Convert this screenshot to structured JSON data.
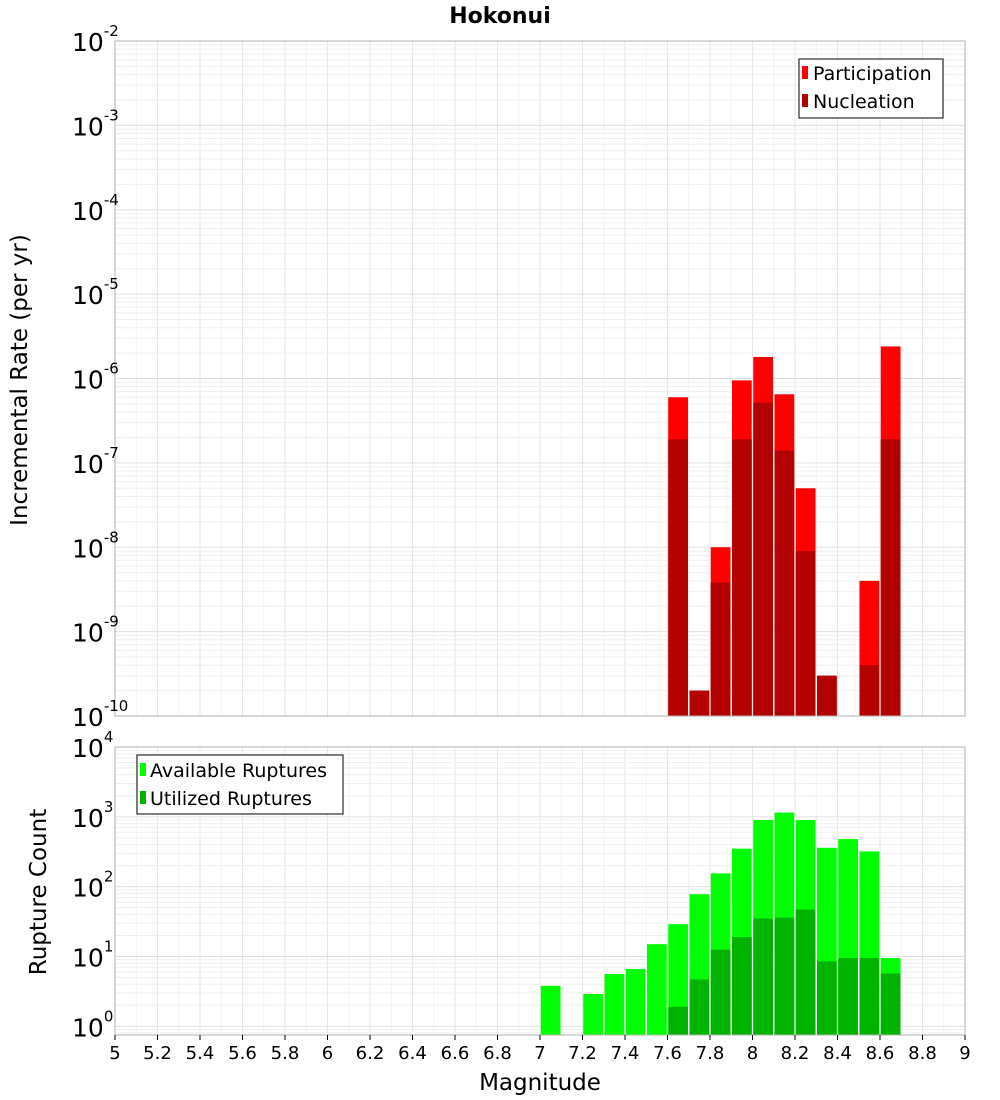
{
  "chart_data": [
    {
      "type": "bar",
      "title": "Hokonui",
      "ylabel": "Incremental Rate (per yr)",
      "yscale": "log",
      "ylim": [
        1e-10,
        0.01
      ],
      "xlim": [
        5,
        9
      ],
      "legend": "top-right",
      "grid": true,
      "series": [
        {
          "name": "Participation",
          "color": "#ff0000",
          "x": [
            7.65,
            7.75,
            7.85,
            7.95,
            8.05,
            8.15,
            8.25,
            8.35,
            8.55,
            8.65
          ],
          "values": [
            6e-07,
            2e-10,
            1e-08,
            9.5e-07,
            1.8e-06,
            6.5e-07,
            5e-08,
            3e-10,
            4e-09,
            2.4e-06
          ]
        },
        {
          "name": "Nucleation",
          "color": "#b30000",
          "x": [
            7.65,
            7.75,
            7.85,
            7.95,
            8.05,
            8.15,
            8.25,
            8.35,
            8.55,
            8.65
          ],
          "values": [
            1.9e-07,
            2e-10,
            3.8e-09,
            1.9e-07,
            5.2e-07,
            1.4e-07,
            9e-09,
            3e-10,
            4e-10,
            1.9e-07
          ]
        }
      ]
    },
    {
      "type": "bar",
      "xlabel": "Magnitude",
      "ylabel": "Rupture Count",
      "yscale": "log",
      "ylim": [
        0.75,
        10000
      ],
      "xlim": [
        5,
        9
      ],
      "xticks": [
        "5",
        "5.2",
        "5.4",
        "5.6",
        "5.8",
        "6",
        "6.2",
        "6.4",
        "6.6",
        "6.8",
        "7",
        "7.2",
        "7.4",
        "7.6",
        "7.8",
        "8",
        "8.2",
        "8.4",
        "8.6",
        "8.8",
        "9"
      ],
      "legend": "top-left",
      "grid": true,
      "series": [
        {
          "name": "Available Ruptures",
          "color": "#00ff00",
          "x": [
            7.05,
            7.25,
            7.35,
            7.45,
            7.55,
            7.65,
            7.75,
            7.85,
            7.95,
            8.05,
            8.15,
            8.25,
            8.35,
            8.45,
            8.55,
            8.65
          ],
          "values": [
            3.8,
            2.9,
            5.6,
            6.6,
            15,
            29,
            78,
            155,
            350,
            900,
            1150,
            900,
            360,
            480,
            320,
            9.5
          ]
        },
        {
          "name": "Utilized Ruptures",
          "color": "#00b300",
          "x": [
            7.65,
            7.75,
            7.85,
            7.95,
            8.05,
            8.15,
            8.25,
            8.35,
            8.45,
            8.55,
            8.65
          ],
          "values": [
            1.9,
            4.7,
            12.5,
            19,
            35,
            36,
            47,
            8.5,
            9.5,
            9.5,
            5.7
          ]
        }
      ]
    }
  ]
}
